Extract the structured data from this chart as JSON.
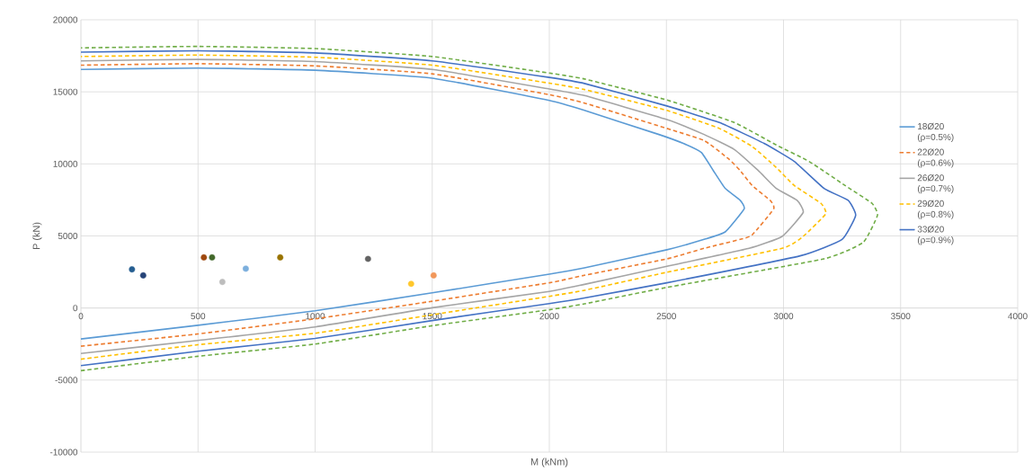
{
  "chart_data": {
    "type": "line",
    "xlabel": "M (kNm)",
    "ylabel": "P (kN)",
    "xlim": [
      0,
      4000
    ],
    "xticks": [
      0,
      500,
      1000,
      1500,
      2000,
      2500,
      3000,
      3500,
      4000
    ],
    "ylim": [
      -10000,
      20000
    ],
    "yticks": [
      -10000,
      -5000,
      0,
      5000,
      10000,
      15000,
      20000
    ],
    "grid": true,
    "legend": "right",
    "series": [
      {
        "name": "18Ø20 (ρ=0.5%)",
        "color": "#5b9bd5",
        "line_style": "solid",
        "x": [
          0,
          500,
          1000,
          1500,
          2000,
          2150,
          2502,
          2661,
          2751,
          2832,
          2815,
          2751,
          2700,
          2649,
          2572,
          2468,
          2150,
          2000,
          1500,
          1000,
          500,
          0
        ],
        "values": [
          -2150,
          -1200,
          -190,
          1050,
          2350,
          2790,
          4040,
          4760,
          5280,
          6880,
          7470,
          8300,
          9540,
          10790,
          11420,
          12040,
          13710,
          14400,
          15950,
          16500,
          16650,
          16550
        ]
      },
      {
        "name": "22Ø20 (ρ=0.6%)",
        "color": "#ed7d31",
        "line_style": "dashed",
        "x": [
          0,
          500,
          1000,
          1500,
          2000,
          2150,
          2502,
          2661,
          2815,
          2866,
          2958,
          2943,
          2866,
          2815,
          2764,
          2661,
          2502,
          2150,
          2000,
          1500,
          1000,
          500,
          0
        ],
        "values": [
          -2650,
          -1800,
          -750,
          470,
          1750,
          2270,
          3410,
          4140,
          4760,
          5070,
          6880,
          7470,
          8500,
          9540,
          10370,
          11620,
          12460,
          14220,
          14800,
          16250,
          16800,
          16950,
          16850
        ]
      },
      {
        "name": "26Ø20 (ρ=0.7%)",
        "color": "#a5a5a5",
        "line_style": "solid",
        "x": [
          0,
          500,
          1000,
          1500,
          2000,
          2150,
          2502,
          2853,
          2994,
          3084,
          3058,
          2969,
          2892,
          2790,
          2661,
          2502,
          2150,
          2000,
          1500,
          1000,
          500,
          0
        ],
        "values": [
          -3150,
          -2250,
          -1310,
          20,
          1150,
          1640,
          2890,
          4140,
          4970,
          6630,
          7470,
          8300,
          9540,
          11000,
          12040,
          13080,
          14740,
          15200,
          16550,
          17100,
          17250,
          17150
        ]
      },
      {
        "name": "29Ø20 (ρ=0.8%)",
        "color": "#ffc000",
        "line_style": "dashed",
        "x": [
          0,
          500,
          1000,
          1500,
          2000,
          2150,
          2502,
          2994,
          3084,
          3180,
          3160,
          3046,
          2969,
          2866,
          2726,
          2502,
          2150,
          2000,
          1500,
          1000,
          500,
          0
        ],
        "values": [
          -3550,
          -2550,
          -1750,
          -470,
          810,
          1230,
          2480,
          4140,
          4970,
          6530,
          7260,
          8500,
          9750,
          11210,
          12460,
          13710,
          15160,
          15600,
          16850,
          17400,
          17550,
          17450
        ]
      },
      {
        "name": "33Ø20 (ρ=0.9%)",
        "color": "#4472c4",
        "line_style": "solid",
        "x": [
          0,
          500,
          1000,
          1500,
          2000,
          2150,
          2502,
          3071,
          3250,
          3308,
          3276,
          3173,
          3046,
          2917,
          2726,
          2502,
          2150,
          2000,
          1500,
          1000,
          500,
          0
        ],
        "values": [
          -4000,
          -3000,
          -2110,
          -870,
          310,
          700,
          1750,
          3620,
          4760,
          6430,
          7470,
          8300,
          10170,
          11420,
          12870,
          14020,
          15580,
          16000,
          17150,
          17700,
          17850,
          17750
        ]
      },
      {
        "color": "#70ad47",
        "line_style": "dashed",
        "x": [
          0,
          500,
          1000,
          1500,
          2000,
          2150,
          2502,
          3173,
          3340,
          3401,
          3378,
          3263,
          3109,
          2969,
          2790,
          2502,
          2150,
          2000,
          1500,
          1000,
          500,
          0
        ],
        "values": [
          -4350,
          -3350,
          -2500,
          -1230,
          -120,
          290,
          1430,
          3410,
          4550,
          6430,
          7260,
          8500,
          10170,
          11310,
          12870,
          14430,
          15890,
          16300,
          17450,
          18000,
          18150,
          18050
        ]
      },
      {
        "type": "scatter",
        "marker": "circle",
        "x": [
          218,
          266,
          525,
          560,
          604,
          704,
          851,
          1226,
          1410,
          1506
        ],
        "values": [
          2680,
          2260,
          3510,
          3510,
          1810,
          2730,
          3510,
          3410,
          1680,
          2260
        ],
        "colors": [
          "#255e91",
          "#264478",
          "#9e480e",
          "#43682b",
          "#bdbdbd",
          "#7cafdd",
          "#997300",
          "#636363",
          "#ffc72c",
          "#f1975a"
        ]
      }
    ]
  }
}
